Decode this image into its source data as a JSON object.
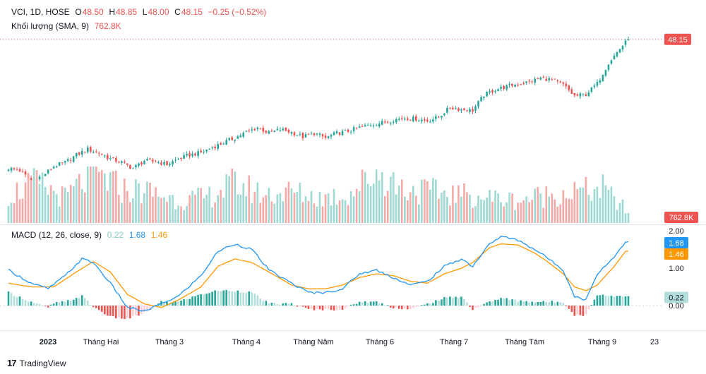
{
  "header": {
    "symbol": "VCI, 1D, HOSE",
    "o_label": "O",
    "o_value": "48.50",
    "h_label": "H",
    "h_value": "48.85",
    "l_label": "L",
    "l_value": "48.00",
    "c_label": "C",
    "c_value": "48.15",
    "change": "−0.25 (−0.52%)",
    "volume_label": "Khối lượng (SMA, 9)",
    "volume_value": "762.8K"
  },
  "macd_legend": {
    "label": "MACD (12, 26, close, 9)",
    "hist": "0.22",
    "macd": "1.68",
    "signal": "1.46"
  },
  "branding": {
    "name": "TradingView"
  },
  "colors": {
    "up": "#26a69a",
    "down": "#ef5350",
    "up_vol": "#9fd9d3",
    "down_vol": "#f7a9a8",
    "macd_line": "#2196f3",
    "signal_line": "#ff9800",
    "hist_up_strong": "#26a69a",
    "hist_up_weak": "#b2dfdb",
    "hist_down_strong": "#ef5350",
    "hist_down_weak": "#ffcdd2",
    "price_tag": "#ef5350"
  },
  "chart_data": {
    "type": "candlestick",
    "symbol": "VCI",
    "interval": "1D",
    "exchange": "HOSE",
    "price_axis": {
      "labels": [],
      "last_price": 48.15,
      "last_price_label": "48.15",
      "ylim": [
        17.5,
        50.5
      ]
    },
    "volume": {
      "last_label": "762.8K"
    },
    "x_ticks": [
      "2023",
      "Tháng Hai",
      "Tháng 3",
      "Tháng 4",
      "Tháng Năm",
      "Tháng 6",
      "Tháng 7",
      "Tháng Tám",
      "Tháng 9",
      "23"
    ],
    "price_anchors": [
      [
        0,
        21.0
      ],
      [
        4,
        20.5
      ],
      [
        8,
        18.4
      ],
      [
        12,
        19.4
      ],
      [
        16,
        21.4
      ],
      [
        20,
        22.2
      ],
      [
        24,
        23.8
      ],
      [
        28,
        25.0
      ],
      [
        32,
        24.2
      ],
      [
        36,
        23.0
      ],
      [
        40,
        22.2
      ],
      [
        44,
        21.0
      ],
      [
        48,
        22.6
      ],
      [
        52,
        22.4
      ],
      [
        56,
        21.8
      ],
      [
        60,
        23.0
      ],
      [
        64,
        23.8
      ],
      [
        68,
        24.3
      ],
      [
        72,
        25.4
      ],
      [
        76,
        26.4
      ],
      [
        80,
        27.4
      ],
      [
        84,
        28.6
      ],
      [
        88,
        29.6
      ],
      [
        92,
        28.4
      ],
      [
        96,
        29.2
      ],
      [
        100,
        28.6
      ],
      [
        104,
        27.6
      ],
      [
        108,
        28.4
      ],
      [
        112,
        27.4
      ],
      [
        116,
        28.4
      ],
      [
        120,
        28.8
      ],
      [
        124,
        29.6
      ],
      [
        128,
        30.2
      ],
      [
        132,
        30.6
      ],
      [
        136,
        31.2
      ],
      [
        140,
        31.6
      ],
      [
        144,
        31.4
      ],
      [
        148,
        31.0
      ],
      [
        152,
        31.8
      ],
      [
        156,
        33.8
      ],
      [
        160,
        33.4
      ],
      [
        164,
        33.2
      ],
      [
        168,
        36.4
      ],
      [
        172,
        37.6
      ],
      [
        176,
        38.2
      ],
      [
        180,
        38.8
      ],
      [
        184,
        39.2
      ],
      [
        188,
        40.0
      ],
      [
        192,
        39.6
      ],
      [
        196,
        38.6
      ],
      [
        200,
        36.2
      ],
      [
        204,
        36.6
      ],
      [
        208,
        38.8
      ],
      [
        212,
        43.2
      ],
      [
        216,
        46.2
      ],
      [
        219,
        48.15
      ]
    ],
    "volume_anchors": [
      [
        0,
        0.5
      ],
      [
        10,
        0.7
      ],
      [
        20,
        0.45
      ],
      [
        30,
        0.9
      ],
      [
        40,
        0.6
      ],
      [
        50,
        0.55
      ],
      [
        60,
        0.4
      ],
      [
        70,
        0.45
      ],
      [
        80,
        0.7
      ],
      [
        90,
        0.5
      ],
      [
        100,
        0.55
      ],
      [
        110,
        0.45
      ],
      [
        120,
        0.5
      ],
      [
        130,
        0.9
      ],
      [
        140,
        0.6
      ],
      [
        150,
        0.55
      ],
      [
        160,
        0.5
      ],
      [
        170,
        0.45
      ],
      [
        180,
        0.4
      ],
      [
        190,
        0.5
      ],
      [
        200,
        0.55
      ],
      [
        210,
        0.6
      ],
      [
        219,
        0.2
      ]
    ],
    "macd": {
      "params": "12, 26, close, 9",
      "hist_last": 0.22,
      "macd_last": 1.68,
      "signal_last": 1.46,
      "axis_labels": [
        "2.00",
        "1.00",
        "0.00"
      ],
      "ylim": [
        -0.62,
        2.02
      ],
      "macd_anchors": [
        [
          0,
          0.95
        ],
        [
          8,
          0.6
        ],
        [
          14,
          0.45
        ],
        [
          20,
          0.8
        ],
        [
          26,
          1.25
        ],
        [
          30,
          1.15
        ],
        [
          36,
          0.6
        ],
        [
          42,
          -0.05
        ],
        [
          48,
          -0.15
        ],
        [
          54,
          0.05
        ],
        [
          60,
          0.25
        ],
        [
          68,
          0.8
        ],
        [
          74,
          1.45
        ],
        [
          80,
          1.65
        ],
        [
          86,
          1.5
        ],
        [
          92,
          0.95
        ],
        [
          100,
          0.6
        ],
        [
          106,
          0.35
        ],
        [
          112,
          0.35
        ],
        [
          118,
          0.45
        ],
        [
          124,
          0.85
        ],
        [
          130,
          0.95
        ],
        [
          136,
          0.75
        ],
        [
          142,
          0.55
        ],
        [
          148,
          0.65
        ],
        [
          154,
          1.05
        ],
        [
          160,
          1.25
        ],
        [
          164,
          1.05
        ],
        [
          170,
          1.65
        ],
        [
          174,
          1.85
        ],
        [
          180,
          1.75
        ],
        [
          186,
          1.5
        ],
        [
          190,
          1.3
        ],
        [
          196,
          0.95
        ],
        [
          200,
          0.25
        ],
        [
          204,
          0.15
        ],
        [
          208,
          0.85
        ],
        [
          214,
          1.3
        ],
        [
          218,
          1.72
        ],
        [
          220,
          1.68
        ]
      ],
      "signal_anchors": [
        [
          0,
          0.6
        ],
        [
          8,
          0.5
        ],
        [
          16,
          0.5
        ],
        [
          24,
          0.9
        ],
        [
          30,
          1.18
        ],
        [
          36,
          0.9
        ],
        [
          42,
          0.3
        ],
        [
          48,
          0.05
        ],
        [
          54,
          -0.05
        ],
        [
          60,
          0.15
        ],
        [
          68,
          0.5
        ],
        [
          74,
          1.05
        ],
        [
          80,
          1.25
        ],
        [
          86,
          1.15
        ],
        [
          92,
          0.9
        ],
        [
          100,
          0.55
        ],
        [
          106,
          0.45
        ],
        [
          112,
          0.45
        ],
        [
          118,
          0.55
        ],
        [
          124,
          0.75
        ],
        [
          130,
          0.85
        ],
        [
          136,
          0.8
        ],
        [
          142,
          0.65
        ],
        [
          148,
          0.6
        ],
        [
          154,
          0.85
        ],
        [
          160,
          1.0
        ],
        [
          164,
          1.15
        ],
        [
          170,
          1.55
        ],
        [
          174,
          1.65
        ],
        [
          180,
          1.62
        ],
        [
          186,
          1.4
        ],
        [
          190,
          1.2
        ],
        [
          196,
          0.85
        ],
        [
          200,
          0.5
        ],
        [
          204,
          0.4
        ],
        [
          208,
          0.55
        ],
        [
          214,
          1.05
        ],
        [
          218,
          1.45
        ],
        [
          220,
          1.46
        ]
      ]
    }
  }
}
